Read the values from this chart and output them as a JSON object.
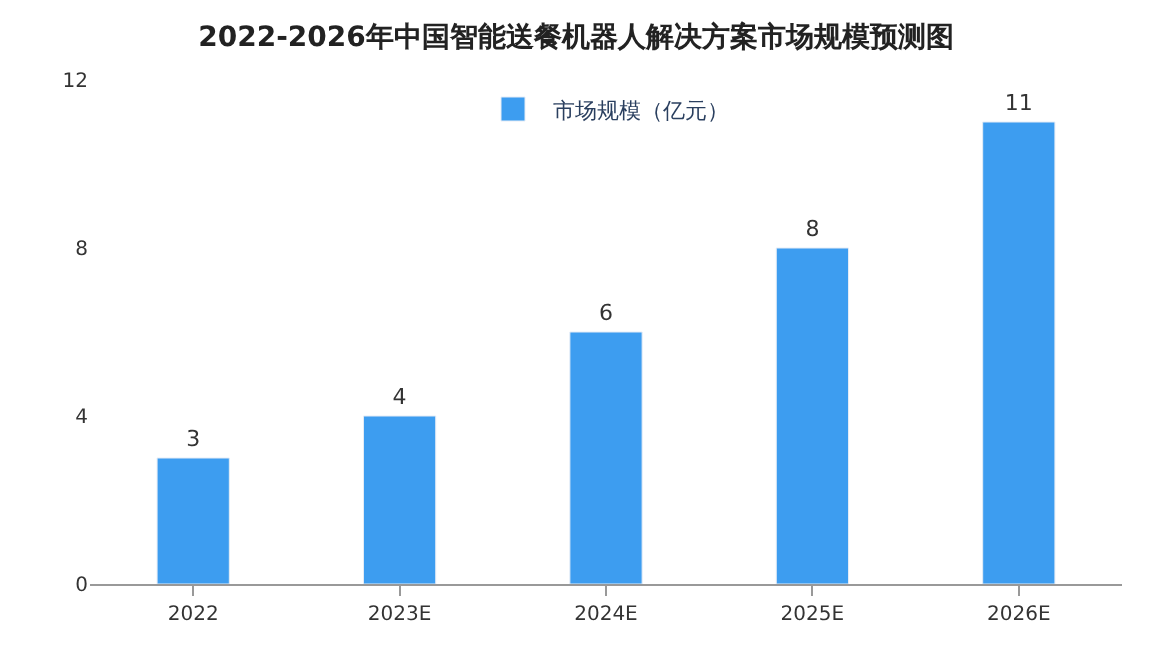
{
  "chart_data": {
    "type": "bar",
    "title": "2022-2026年中国智能送餐机器人解决方案市场规模预测图",
    "categories": [
      "2022",
      "2023E",
      "2024E",
      "2025E",
      "2026E"
    ],
    "series": [
      {
        "name": "市场规模（亿元）",
        "color": "#3d9df0",
        "values": [
          3,
          4,
          6,
          8,
          11
        ]
      }
    ],
    "ylim": [
      0,
      12
    ],
    "yticks": [
      0,
      4,
      8,
      12
    ],
    "legend": "top",
    "data_labels": true
  }
}
